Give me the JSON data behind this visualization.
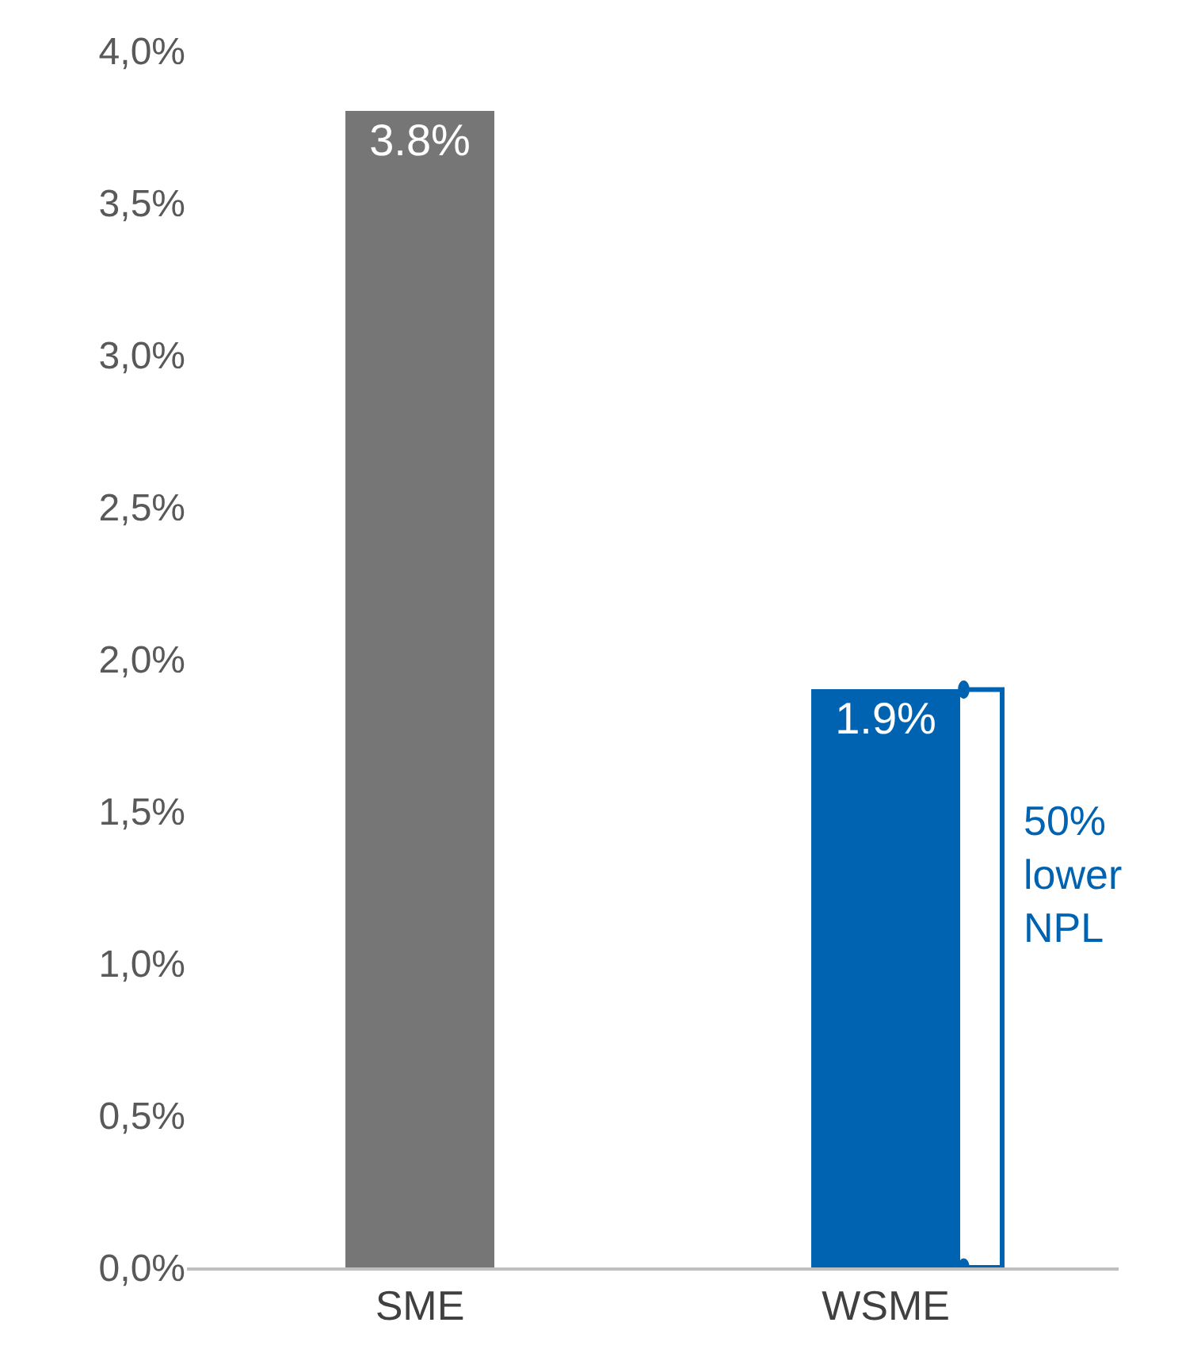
{
  "chart_data": {
    "type": "bar",
    "categories": [
      "SME",
      "WSME"
    ],
    "values": [
      3.8,
      1.9
    ],
    "colors": [
      "#767676",
      "#0063b1"
    ],
    "value_labels": [
      "3.8%",
      "1.9%"
    ],
    "ylim": [
      0,
      4.0
    ],
    "yticks": [
      {
        "value": 0,
        "label": "0,0%"
      },
      {
        "value": 0.5,
        "label": "0,5%"
      },
      {
        "value": 1.0,
        "label": "1,0%"
      },
      {
        "value": 1.5,
        "label": "1,5%"
      },
      {
        "value": 2.0,
        "label": "2,0%"
      },
      {
        "value": 2.5,
        "label": "2,5%"
      },
      {
        "value": 3.0,
        "label": "3,0%"
      },
      {
        "value": 3.5,
        "label": "3,5%"
      },
      {
        "value": 4.0,
        "label": "4,0%"
      }
    ],
    "legend": false,
    "annotations": [
      "50%\nlower\nNPL"
    ]
  }
}
